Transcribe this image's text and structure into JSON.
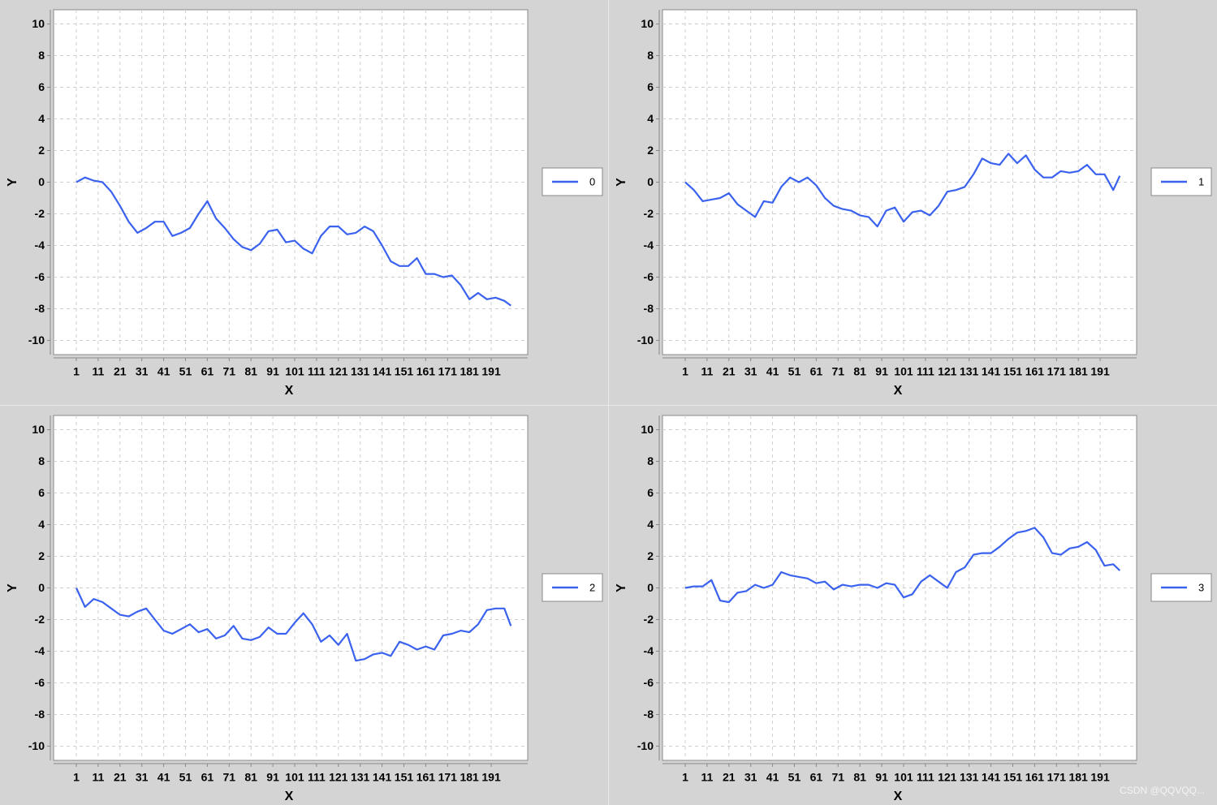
{
  "chart_data": [
    {
      "type": "line",
      "xlabel": "X",
      "ylabel": "Y",
      "grid": true,
      "legend": "right",
      "xlim": [
        -9.4,
        207.7
      ],
      "ylim": [
        -10.9,
        10.9
      ],
      "xticks": [
        1,
        11,
        21,
        31,
        41,
        51,
        61,
        71,
        81,
        91,
        101,
        111,
        121,
        131,
        141,
        151,
        161,
        171,
        181,
        191
      ],
      "yticks": [
        -10,
        -8,
        -6,
        -4,
        -2,
        0,
        2,
        4,
        6,
        8,
        10
      ],
      "x": [
        1,
        5,
        9,
        13,
        17,
        21,
        25,
        29,
        33,
        37,
        41,
        45,
        49,
        53,
        57,
        61,
        65,
        69,
        73,
        77,
        81,
        85,
        89,
        93,
        97,
        101,
        105,
        109,
        113,
        117,
        121,
        125,
        129,
        133,
        137,
        141,
        145,
        149,
        153,
        157,
        161,
        165,
        169,
        173,
        177,
        181,
        185,
        189,
        193,
        197,
        200
      ],
      "series": [
        {
          "name": "0",
          "color": "#3a62ee",
          "values": [
            0,
            0.3,
            0.1,
            0,
            -0.6,
            -1.5,
            -2.5,
            -3.2,
            -2.9,
            -2.5,
            -2.5,
            -3.4,
            -3.2,
            -2.9,
            -2.0,
            -1.2,
            -2.3,
            -2.9,
            -3.6,
            -4.1,
            -4.3,
            -3.9,
            -3.1,
            -3.0,
            -3.8,
            -3.7,
            -4.2,
            -4.5,
            -3.4,
            -2.8,
            -2.8,
            -3.3,
            -3.2,
            -2.8,
            -3.1,
            -4.0,
            -5.0,
            -5.3,
            -5.3,
            -4.8,
            -5.8,
            -5.8,
            -6.0,
            -5.9,
            -6.5,
            -7.4,
            -7.0,
            -7.4,
            -7.3,
            -7.5,
            -7.8
          ]
        }
      ]
    },
    {
      "type": "line",
      "xlabel": "X",
      "ylabel": "Y",
      "grid": true,
      "legend": "right",
      "xlim": [
        -9.4,
        207.7
      ],
      "ylim": [
        -10.9,
        10.9
      ],
      "xticks": [
        1,
        11,
        21,
        31,
        41,
        51,
        61,
        71,
        81,
        91,
        101,
        111,
        121,
        131,
        141,
        151,
        161,
        171,
        181,
        191
      ],
      "yticks": [
        -10,
        -8,
        -6,
        -4,
        -2,
        0,
        2,
        4,
        6,
        8,
        10
      ],
      "x": [
        1,
        5,
        9,
        13,
        17,
        21,
        25,
        29,
        33,
        37,
        41,
        45,
        49,
        53,
        57,
        61,
        65,
        69,
        73,
        77,
        81,
        85,
        89,
        93,
        97,
        101,
        105,
        109,
        113,
        117,
        121,
        125,
        129,
        133,
        137,
        141,
        145,
        149,
        153,
        157,
        161,
        165,
        169,
        173,
        177,
        181,
        185,
        189,
        193,
        197,
        200
      ],
      "series": [
        {
          "name": "1",
          "color": "#3a62ee",
          "values": [
            0,
            -0.5,
            -1.2,
            -1.1,
            -1.0,
            -0.7,
            -1.4,
            -1.8,
            -2.2,
            -1.2,
            -1.3,
            -0.3,
            0.3,
            0.0,
            0.3,
            -0.2,
            -1.0,
            -1.5,
            -1.7,
            -1.8,
            -2.1,
            -2.2,
            -2.8,
            -1.8,
            -1.6,
            -2.5,
            -1.9,
            -1.8,
            -2.1,
            -1.5,
            -0.6,
            -0.5,
            -0.3,
            0.5,
            1.5,
            1.2,
            1.1,
            1.8,
            1.2,
            1.7,
            0.8,
            0.3,
            0.3,
            0.7,
            0.6,
            0.7,
            1.1,
            0.5,
            0.5,
            -0.5,
            0.4
          ]
        }
      ]
    },
    {
      "type": "line",
      "xlabel": "X",
      "ylabel": "Y",
      "grid": true,
      "legend": "right",
      "xlim": [
        -9.4,
        207.7
      ],
      "ylim": [
        -10.9,
        10.9
      ],
      "xticks": [
        1,
        11,
        21,
        31,
        41,
        51,
        61,
        71,
        81,
        91,
        101,
        111,
        121,
        131,
        141,
        151,
        161,
        171,
        181,
        191
      ],
      "yticks": [
        -10,
        -8,
        -6,
        -4,
        -2,
        0,
        2,
        4,
        6,
        8,
        10
      ],
      "x": [
        1,
        5,
        9,
        13,
        17,
        21,
        25,
        29,
        33,
        37,
        41,
        45,
        49,
        53,
        57,
        61,
        65,
        69,
        73,
        77,
        81,
        85,
        89,
        93,
        97,
        101,
        105,
        109,
        113,
        117,
        121,
        125,
        129,
        133,
        137,
        141,
        145,
        149,
        153,
        157,
        161,
        165,
        169,
        173,
        177,
        181,
        185,
        189,
        193,
        197,
        200
      ],
      "series": [
        {
          "name": "2",
          "color": "#3a62ee",
          "values": [
            0,
            -1.2,
            -0.7,
            -0.9,
            -1.3,
            -1.7,
            -1.8,
            -1.5,
            -1.3,
            -2.0,
            -2.7,
            -2.9,
            -2.6,
            -2.3,
            -2.8,
            -2.6,
            -3.2,
            -3.0,
            -2.4,
            -3.2,
            -3.3,
            -3.1,
            -2.5,
            -2.9,
            -2.9,
            -2.2,
            -1.6,
            -2.3,
            -3.4,
            -3.0,
            -3.6,
            -2.9,
            -4.6,
            -4.5,
            -4.2,
            -4.1,
            -4.3,
            -3.4,
            -3.6,
            -3.9,
            -3.7,
            -3.9,
            -3.0,
            -2.9,
            -2.7,
            -2.8,
            -2.3,
            -1.4,
            -1.3,
            -1.3,
            -2.4
          ]
        }
      ]
    },
    {
      "type": "line",
      "xlabel": "X",
      "ylabel": "Y",
      "grid": true,
      "legend": "right",
      "xlim": [
        -9.4,
        207.7
      ],
      "ylim": [
        -10.9,
        10.9
      ],
      "xticks": [
        1,
        11,
        21,
        31,
        41,
        51,
        61,
        71,
        81,
        91,
        101,
        111,
        121,
        131,
        141,
        151,
        161,
        171,
        181,
        191
      ],
      "yticks": [
        -10,
        -8,
        -6,
        -4,
        -2,
        0,
        2,
        4,
        6,
        8,
        10
      ],
      "x": [
        1,
        5,
        9,
        13,
        17,
        21,
        25,
        29,
        33,
        37,
        41,
        45,
        49,
        53,
        57,
        61,
        65,
        69,
        73,
        77,
        81,
        85,
        89,
        93,
        97,
        101,
        105,
        109,
        113,
        117,
        121,
        125,
        129,
        133,
        137,
        141,
        145,
        149,
        153,
        157,
        161,
        165,
        169,
        173,
        177,
        181,
        185,
        189,
        193,
        197,
        200
      ],
      "series": [
        {
          "name": "3",
          "color": "#3a62ee",
          "values": [
            0,
            0.1,
            0.1,
            0.5,
            -0.8,
            -0.9,
            -0.3,
            -0.2,
            0.2,
            0.0,
            0.2,
            1.0,
            0.8,
            0.7,
            0.6,
            0.3,
            0.4,
            -0.1,
            0.2,
            0.1,
            0.2,
            0.2,
            0.0,
            0.3,
            0.2,
            -0.6,
            -0.4,
            0.4,
            0.8,
            0.4,
            0.0,
            1.0,
            1.3,
            2.1,
            2.2,
            2.2,
            2.6,
            3.1,
            3.5,
            3.6,
            3.8,
            3.2,
            2.2,
            2.1,
            2.5,
            2.6,
            2.9,
            2.4,
            1.4,
            1.5,
            1.1
          ]
        }
      ]
    }
  ],
  "watermark": "CSDN @QQVQQ..."
}
